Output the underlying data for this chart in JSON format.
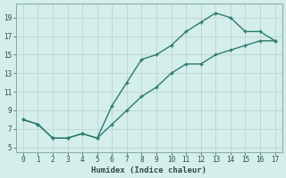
{
  "xlabel": "Humidex (Indice chaleur)",
  "line_color": "#2d7a6e",
  "bg_color": "#d4eeec",
  "grid_color": "#c0d8d4",
  "tick_color": "#2d4a48",
  "xlim": [
    -0.5,
    17.5
  ],
  "ylim": [
    4.5,
    20.5
  ],
  "xticks": [
    0,
    1,
    2,
    3,
    4,
    5,
    6,
    7,
    8,
    9,
    10,
    11,
    12,
    13,
    14,
    15,
    16,
    17
  ],
  "yticks": [
    5,
    7,
    9,
    11,
    13,
    15,
    17,
    19
  ],
  "x_upper": [
    0,
    1,
    2,
    3,
    4,
    5,
    6,
    7,
    8,
    9,
    10,
    11,
    12,
    13,
    14,
    15,
    16,
    17
  ],
  "y_upper": [
    8.0,
    7.5,
    6.0,
    6.0,
    6.5,
    6.0,
    9.5,
    12.0,
    14.5,
    15.0,
    16.0,
    17.5,
    18.5,
    19.5,
    19.0,
    17.5,
    17.5,
    16.5
  ],
  "x_lower": [
    0,
    1,
    2,
    3,
    4,
    5,
    6,
    7,
    8,
    9,
    10,
    11,
    12,
    13,
    14,
    15,
    16,
    17
  ],
  "y_lower": [
    8.0,
    7.5,
    6.0,
    6.0,
    6.5,
    6.0,
    7.5,
    9.0,
    10.5,
    11.5,
    13.0,
    14.0,
    14.0,
    15.0,
    15.5,
    16.0,
    16.5,
    16.5
  ]
}
